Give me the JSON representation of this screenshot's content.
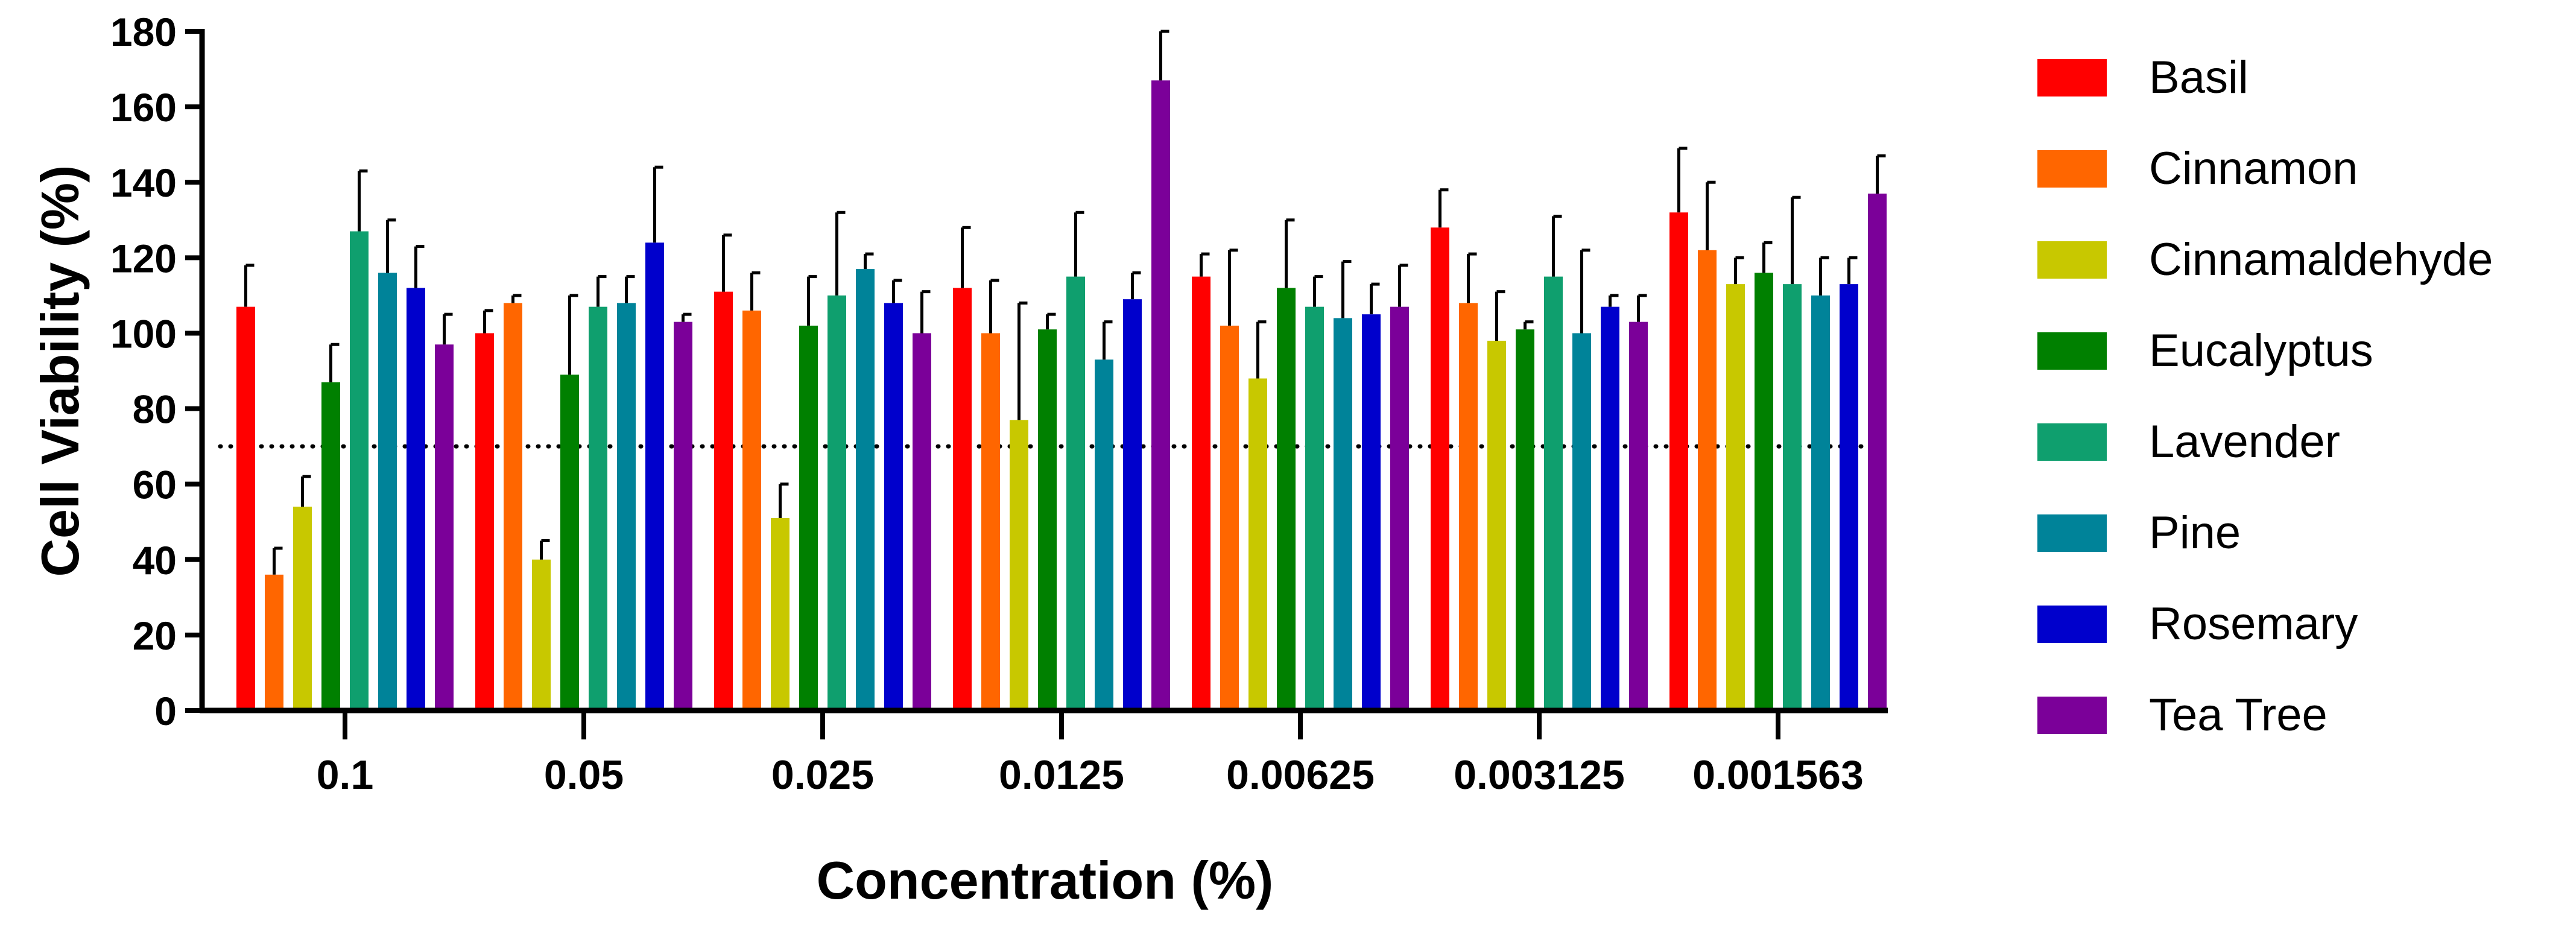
{
  "chart_data": {
    "type": "bar",
    "title": "",
    "xlabel": "Concentration (%)",
    "ylabel": "Cell Viability (%)",
    "ylim": [
      0,
      180
    ],
    "yticks": [
      "0",
      "20",
      "40",
      "60",
      "80",
      "100",
      "120",
      "140",
      "160",
      "180"
    ],
    "ytick_values": [
      0,
      20,
      40,
      60,
      80,
      100,
      120,
      140,
      160,
      180
    ],
    "categories": [
      "0.1",
      "0.05",
      "0.025",
      "0.0125",
      "0.00625",
      "0.003125",
      "0.001563"
    ],
    "reference_line": 70,
    "legend_position": "right",
    "series": [
      {
        "name": "Basil",
        "color": "#ff0000",
        "values": [
          107,
          100,
          111,
          112,
          115,
          128,
          132
        ],
        "errors": [
          11,
          6,
          15,
          16,
          6,
          10,
          17
        ]
      },
      {
        "name": "Cinnamon",
        "color": "#ff6600",
        "values": [
          36,
          108,
          106,
          100,
          102,
          108,
          122
        ],
        "errors": [
          7,
          2,
          10,
          14,
          20,
          13,
          18
        ]
      },
      {
        "name": "Cinnamaldehyde",
        "color": "#c8c800",
        "values": [
          54,
          40,
          51,
          77,
          88,
          98,
          113
        ],
        "errors": [
          8,
          5,
          9,
          31,
          15,
          13,
          7
        ]
      },
      {
        "name": "Eucalyptus",
        "color": "#008000",
        "values": [
          87,
          89,
          102,
          101,
          112,
          101,
          116
        ],
        "errors": [
          10,
          21,
          13,
          4,
          18,
          2,
          8
        ]
      },
      {
        "name": "Lavender",
        "color": "#0f9f6e",
        "values": [
          127,
          107,
          110,
          115,
          107,
          115,
          113
        ],
        "errors": [
          16,
          8,
          22,
          17,
          8,
          16,
          23
        ]
      },
      {
        "name": "Pine",
        "color": "#008399",
        "values": [
          116,
          108,
          117,
          93,
          104,
          100,
          110
        ],
        "errors": [
          14,
          7,
          4,
          10,
          15,
          22,
          10
        ]
      },
      {
        "name": "Rosemary",
        "color": "#0000cc",
        "values": [
          112,
          124,
          108,
          109,
          105,
          107,
          113
        ],
        "errors": [
          11,
          20,
          6,
          7,
          8,
          3,
          7
        ]
      },
      {
        "name": "Tea Tree",
        "color": "#7b0099",
        "values": [
          97,
          103,
          100,
          167,
          107,
          103,
          137
        ],
        "errors": [
          8,
          2,
          11,
          13,
          11,
          7,
          10
        ]
      }
    ]
  }
}
